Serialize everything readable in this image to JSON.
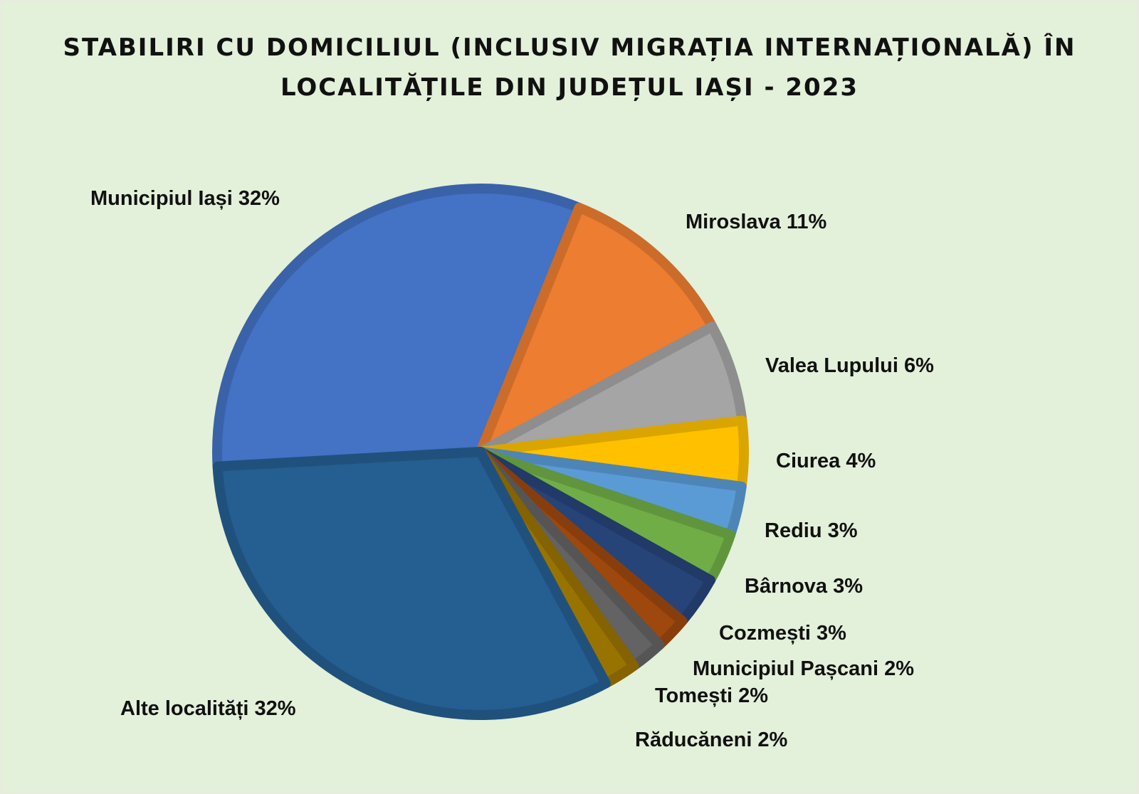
{
  "chart_data": {
    "type": "pie",
    "title_lines": [
      "STABILIRI CU DOMICILIUL (INCLUSIV MIGRAȚIA INTERNAȚIONALĂ) ÎN",
      "LOCALITĂȚILE DIN JUDEȚUL IAȘI - 2023"
    ],
    "slices": [
      {
        "name": "Municipiul Iași",
        "value": 32,
        "label": "Municipiul Iași 32%",
        "color": "#4472c4"
      },
      {
        "name": "Miroslava",
        "value": 11,
        "label": "Miroslava 11%",
        "color": "#ed7d31"
      },
      {
        "name": "Valea Lupului",
        "value": 6,
        "label": "Valea Lupului 6%",
        "color": "#a5a5a5"
      },
      {
        "name": "Ciurea",
        "value": 4,
        "label": "Ciurea 4%",
        "color": "#ffc000"
      },
      {
        "name": "Rediu",
        "value": 3,
        "label": "Rediu 3%",
        "color": "#5b9bd5"
      },
      {
        "name": "Bârnova",
        "value": 3,
        "label": "Bârnova 3%",
        "color": "#70ad47"
      },
      {
        "name": "Cozmești",
        "value": 3,
        "label": "Cozmești 3%",
        "color": "#264478"
      },
      {
        "name": "Municipiul Pașcani",
        "value": 2,
        "label": "Municipiul Pașcani 2%",
        "color": "#9e480e"
      },
      {
        "name": "Tomești",
        "value": 2,
        "label": "Tomești 2%",
        "color": "#636363"
      },
      {
        "name": "Răducăneni",
        "value": 2,
        "label": "Răducăneni 2%",
        "color": "#997300"
      },
      {
        "name": "Alte localități",
        "value": 32,
        "label": "Alte localități 32%",
        "color": "#255e91"
      }
    ],
    "legend": "none",
    "data_labels": "outside"
  }
}
